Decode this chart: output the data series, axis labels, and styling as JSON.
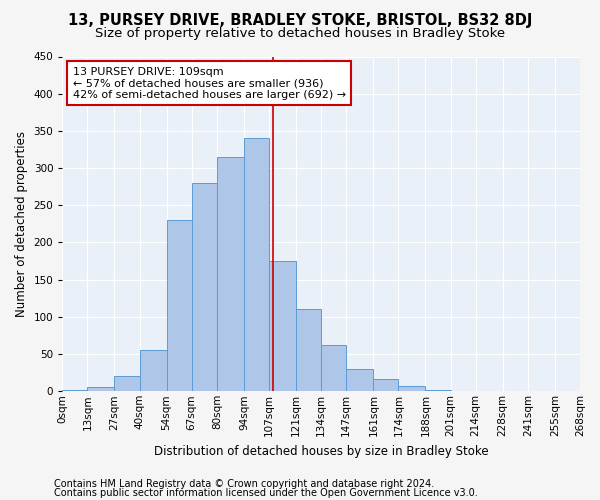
{
  "title1": "13, PURSEY DRIVE, BRADLEY STOKE, BRISTOL, BS32 8DJ",
  "title2": "Size of property relative to detached houses in Bradley Stoke",
  "xlabel": "Distribution of detached houses by size in Bradley Stoke",
  "ylabel": "Number of detached properties",
  "footer1": "Contains HM Land Registry data © Crown copyright and database right 2024.",
  "footer2": "Contains public sector information licensed under the Open Government Licence v3.0.",
  "bin_labels": [
    "0sqm",
    "13sqm",
    "27sqm",
    "40sqm",
    "54sqm",
    "67sqm",
    "80sqm",
    "94sqm",
    "107sqm",
    "121sqm",
    "134sqm",
    "147sqm",
    "161sqm",
    "174sqm",
    "188sqm",
    "201sqm",
    "214sqm",
    "228sqm",
    "241sqm",
    "255sqm",
    "268sqm"
  ],
  "bar_values": [
    2,
    6,
    20,
    55,
    230,
    280,
    315,
    340,
    175,
    110,
    62,
    30,
    16,
    7,
    2,
    1,
    0,
    0,
    0,
    0
  ],
  "bin_edges": [
    0,
    13,
    27,
    40,
    54,
    67,
    80,
    94,
    107,
    121,
    134,
    147,
    161,
    174,
    188,
    201,
    214,
    228,
    241,
    255,
    268
  ],
  "bar_color": "#aec6e8",
  "bar_edge_color": "#5b9bd5",
  "vline_x": 109,
  "vline_color": "#cc0000",
  "annotation_line1": "13 PURSEY DRIVE: 109sqm",
  "annotation_line2": "← 57% of detached houses are smaller (936)",
  "annotation_line3": "42% of semi-detached houses are larger (692) →",
  "annotation_box_color": "#ffffff",
  "annotation_box_edge_color": "#cc0000",
  "annotation_fontsize": 8.0,
  "ylim": [
    0,
    450
  ],
  "yticks": [
    0,
    50,
    100,
    150,
    200,
    250,
    300,
    350,
    400,
    450
  ],
  "bg_color": "#eaf0f8",
  "grid_color": "#ffffff",
  "title1_fontsize": 10.5,
  "title2_fontsize": 9.5,
  "xlabel_fontsize": 8.5,
  "ylabel_fontsize": 8.5,
  "tick_fontsize": 7.5,
  "footer_fontsize": 7.0,
  "fig_bg": "#f5f5f5"
}
